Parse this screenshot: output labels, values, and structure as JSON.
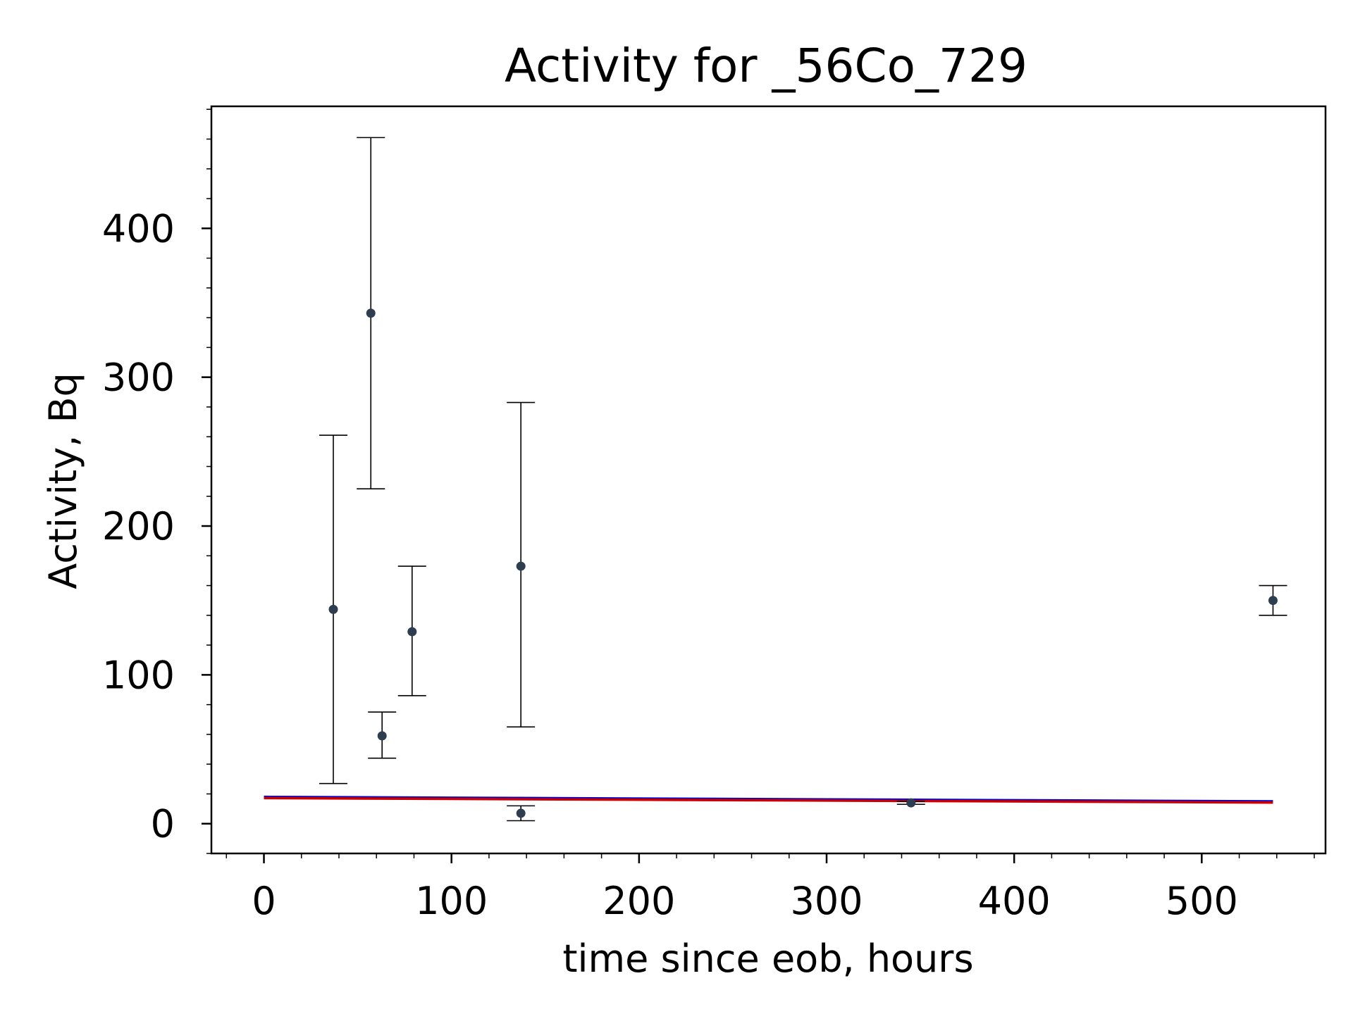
{
  "chart_data": {
    "type": "scatter",
    "title": "Activity for _56Co_729",
    "xlabel": "time since eob, hours",
    "ylabel": "Activity, Bq",
    "xlim": [
      -28,
      566
    ],
    "ylim": [
      -20,
      482
    ],
    "xticks": [
      0,
      100,
      200,
      300,
      400,
      500
    ],
    "yticks": [
      0,
      100,
      200,
      300,
      400
    ],
    "x_minor_step": 20,
    "y_minor_step": 20,
    "grid": false,
    "colors": {
      "points": "#2c3e50",
      "errorbars": "#000000",
      "fit_primary": "#0000cc",
      "fit_secondary": "#cc0000"
    },
    "points": [
      {
        "x": 37,
        "y": 144,
        "yerr_low": 117,
        "yerr_high": 117
      },
      {
        "x": 57,
        "y": 343,
        "yerr_low": 118,
        "yerr_high": 118
      },
      {
        "x": 63,
        "y": 59,
        "yerr_low": 15,
        "yerr_high": 16
      },
      {
        "x": 79,
        "y": 129,
        "yerr_low": 43,
        "yerr_high": 44
      },
      {
        "x": 137,
        "y": 173,
        "yerr_low": 108,
        "yerr_high": 110
      },
      {
        "x": 137,
        "y": 7,
        "yerr_low": 5,
        "yerr_high": 5
      },
      {
        "x": 345,
        "y": 14,
        "yerr_low": 1,
        "yerr_high": 1
      },
      {
        "x": 538,
        "y": 150,
        "yerr_low": 10,
        "yerr_high": 10
      }
    ],
    "fit_lines": [
      {
        "x": [
          0,
          538
        ],
        "y": [
          18,
          15
        ],
        "color": "#0000cc"
      },
      {
        "x": [
          0,
          538
        ],
        "y": [
          17.2,
          14.2
        ],
        "color": "#cc0000"
      }
    ]
  }
}
